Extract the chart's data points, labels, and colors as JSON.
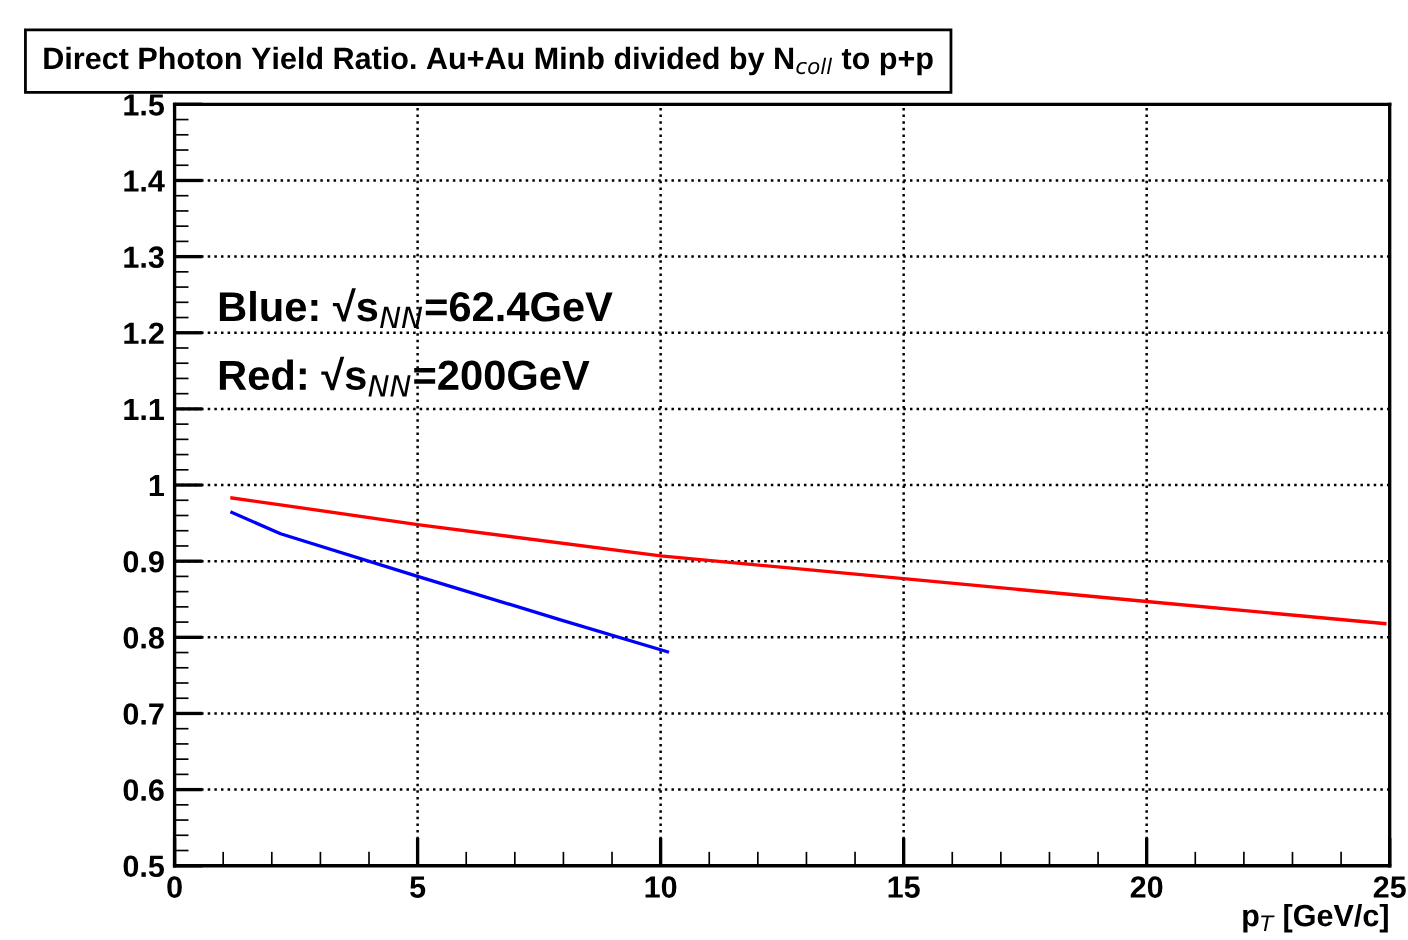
{
  "chart_data": {
    "type": "line",
    "title": "Direct Photon Yield Ratio. Au+Au Minb divided by N$_{coll}$ to p+p",
    "xlabel": "p$_{T}$ [GeV/c]",
    "series": [
      {
        "color": "#0000ff",
        "x": [
          1.18,
          2.18,
          5,
          7.94,
          10.14
        ],
        "values": [
          0.964,
          0.936,
          0.88,
          0.823,
          0.781
        ]
      },
      {
        "color": "#ff0000",
        "x": [
          1.18,
          2.18,
          5,
          10,
          15,
          20,
          24.9
        ],
        "values": [
          0.983,
          0.974,
          0.948,
          0.907,
          0.877,
          0.847,
          0.818
        ]
      }
    ],
    "annotations": [
      "Blue: √s$_{NN}$=62.4GeV",
      "Red: √s$_{NN}$=200GeV"
    ],
    "xlim": [
      0,
      25
    ],
    "ylim": [
      0.5,
      1.5
    ],
    "xticks": [
      0,
      5,
      10,
      15,
      20,
      25
    ],
    "yticks": [
      0.5,
      0.6,
      0.7,
      0.8,
      0.9,
      1,
      1.1,
      1.2,
      1.3,
      1.4,
      1.5
    ],
    "grid": true,
    "line_style": "solid",
    "marker": "none",
    "legend": false
  }
}
